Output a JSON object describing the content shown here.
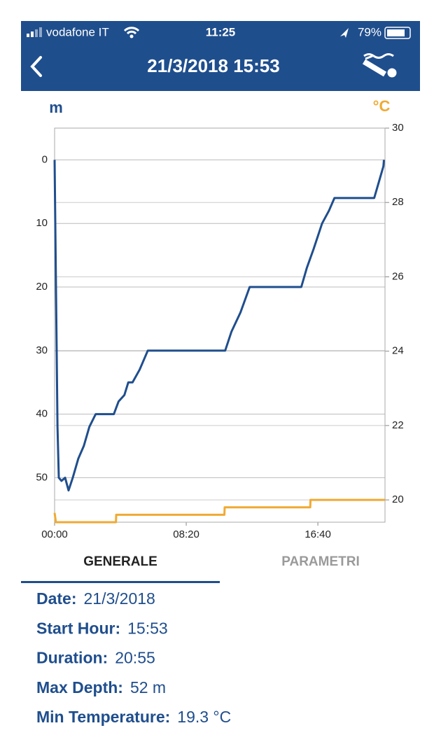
{
  "status_bar": {
    "carrier": "vodafone IT",
    "time": "11:25",
    "battery": "79%"
  },
  "header": {
    "title": "21/3/2018 15:53"
  },
  "chart_data": {
    "type": "line",
    "y_label": "m",
    "y2_label": "°C",
    "xlim": [
      0,
      1255
    ],
    "xticks": [
      {
        "value": 0,
        "label": "00:00"
      },
      {
        "value": 500,
        "label": "08:20"
      },
      {
        "value": 1000,
        "label": "16:40"
      }
    ],
    "ylim": [
      -5,
      57
    ],
    "invert_y": true,
    "yticks": [
      0,
      10,
      20,
      30,
      40,
      50
    ],
    "y2lim": [
      19.4,
      30
    ],
    "y2ticks": [
      20,
      22,
      24,
      26,
      28,
      30
    ],
    "grid": true,
    "series": [
      {
        "color": "#1f4e8d",
        "x": [
          0,
          11,
          16,
          26,
          40,
          53,
          69,
          90,
          111,
          132,
          156,
          225,
          243,
          265,
          280,
          296,
          323,
          354,
          648,
          672,
          706,
          741,
          937,
          958,
          984,
          1016,
          1042,
          1063,
          1214,
          1235,
          1249,
          1251
        ],
        "values": [
          0,
          42,
          50,
          50.5,
          50,
          52,
          50,
          47,
          45,
          42,
          40,
          40,
          38,
          37,
          35,
          35,
          33,
          30,
          30,
          27,
          24,
          20,
          20,
          17,
          14,
          10,
          8,
          6,
          6,
          3,
          1,
          0
        ]
      },
      {
        "color": "#f0aa32",
        "axis": "y2",
        "x": [
          0,
          5,
          233,
          234,
          645,
          646,
          971,
          972,
          1255
        ],
        "values": [
          19.65,
          19.4,
          19.4,
          19.6,
          19.6,
          19.8,
          19.8,
          20,
          20
        ]
      }
    ]
  },
  "tabs": [
    "GENERALE",
    "PARAMETRI"
  ],
  "details": [
    {
      "label": "Date:",
      "value": "21/3/2018"
    },
    {
      "label": "Start Hour:",
      "value": "15:53"
    },
    {
      "label": "Duration:",
      "value": "20:55"
    },
    {
      "label": "Max Depth:",
      "value": "52 m"
    },
    {
      "label": "Min Temperature:",
      "value": "19.3 °C"
    }
  ]
}
